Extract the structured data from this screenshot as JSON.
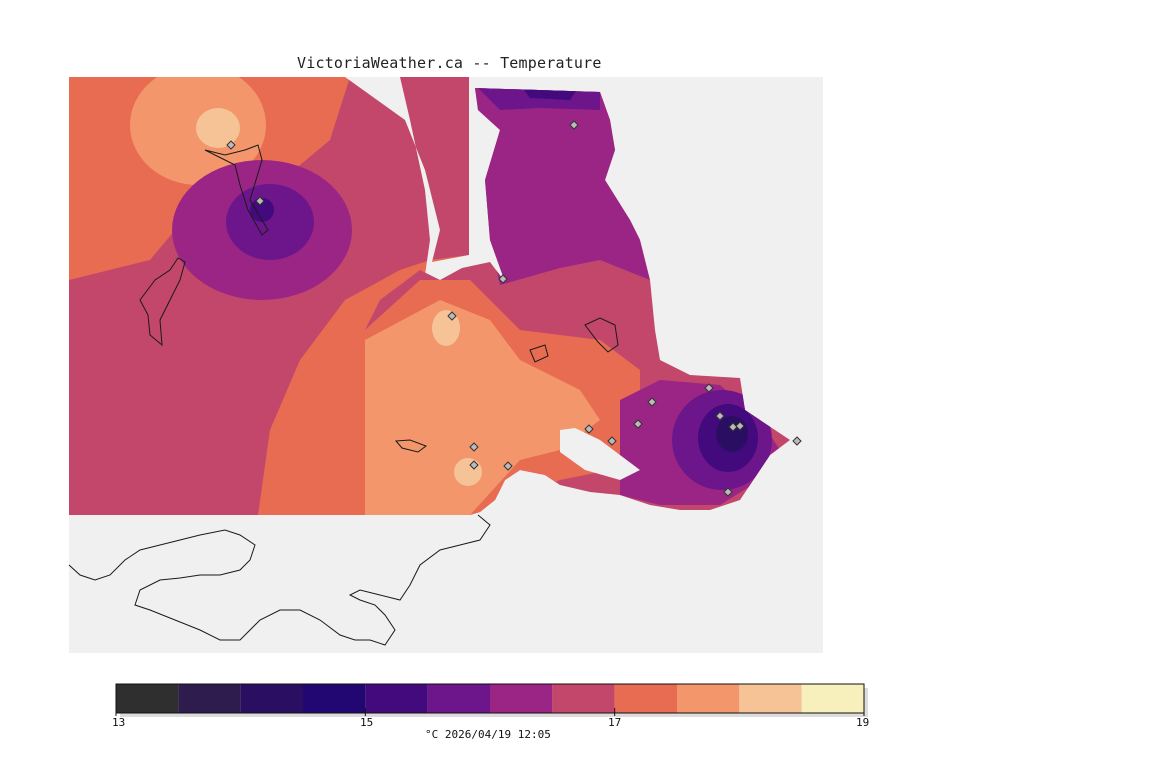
{
  "title": "VictoriaWeather.ca -- Temperature",
  "colors": {
    "water": "#f0f0f0",
    "land_outside": "#ffffff",
    "outline": "#1a1a1a"
  },
  "legend": {
    "ticks": [
      "13",
      "15",
      "17",
      "19"
    ],
    "bins": [
      {
        "from": 13.0,
        "to": 13.5,
        "color": "#2f2f2f"
      },
      {
        "from": 13.5,
        "to": 14.0,
        "color": "#2e1c4e"
      },
      {
        "from": 14.0,
        "to": 14.5,
        "color": "#2a0e62"
      },
      {
        "from": 14.5,
        "to": 15.0,
        "color": "#220672"
      },
      {
        "from": 15.0,
        "to": 15.5,
        "color": "#420a7c"
      },
      {
        "from": 15.5,
        "to": 16.0,
        "color": "#6d168b"
      },
      {
        "from": 16.0,
        "to": 16.5,
        "color": "#9a2585"
      },
      {
        "from": 16.5,
        "to": 17.0,
        "color": "#c2476a"
      },
      {
        "from": 17.0,
        "to": 17.5,
        "color": "#e86c52"
      },
      {
        "from": 17.5,
        "to": 18.0,
        "color": "#f3966b"
      },
      {
        "from": 18.0,
        "to": 18.5,
        "color": "#f5c396"
      },
      {
        "from": 18.5,
        "to": 19.0,
        "color": "#f7efbc"
      }
    ],
    "unit": "°C",
    "timestamp": "2026/04/19 12:05",
    "footer": "°C  2026/04/19 12:05"
  },
  "stations_count": 20
}
